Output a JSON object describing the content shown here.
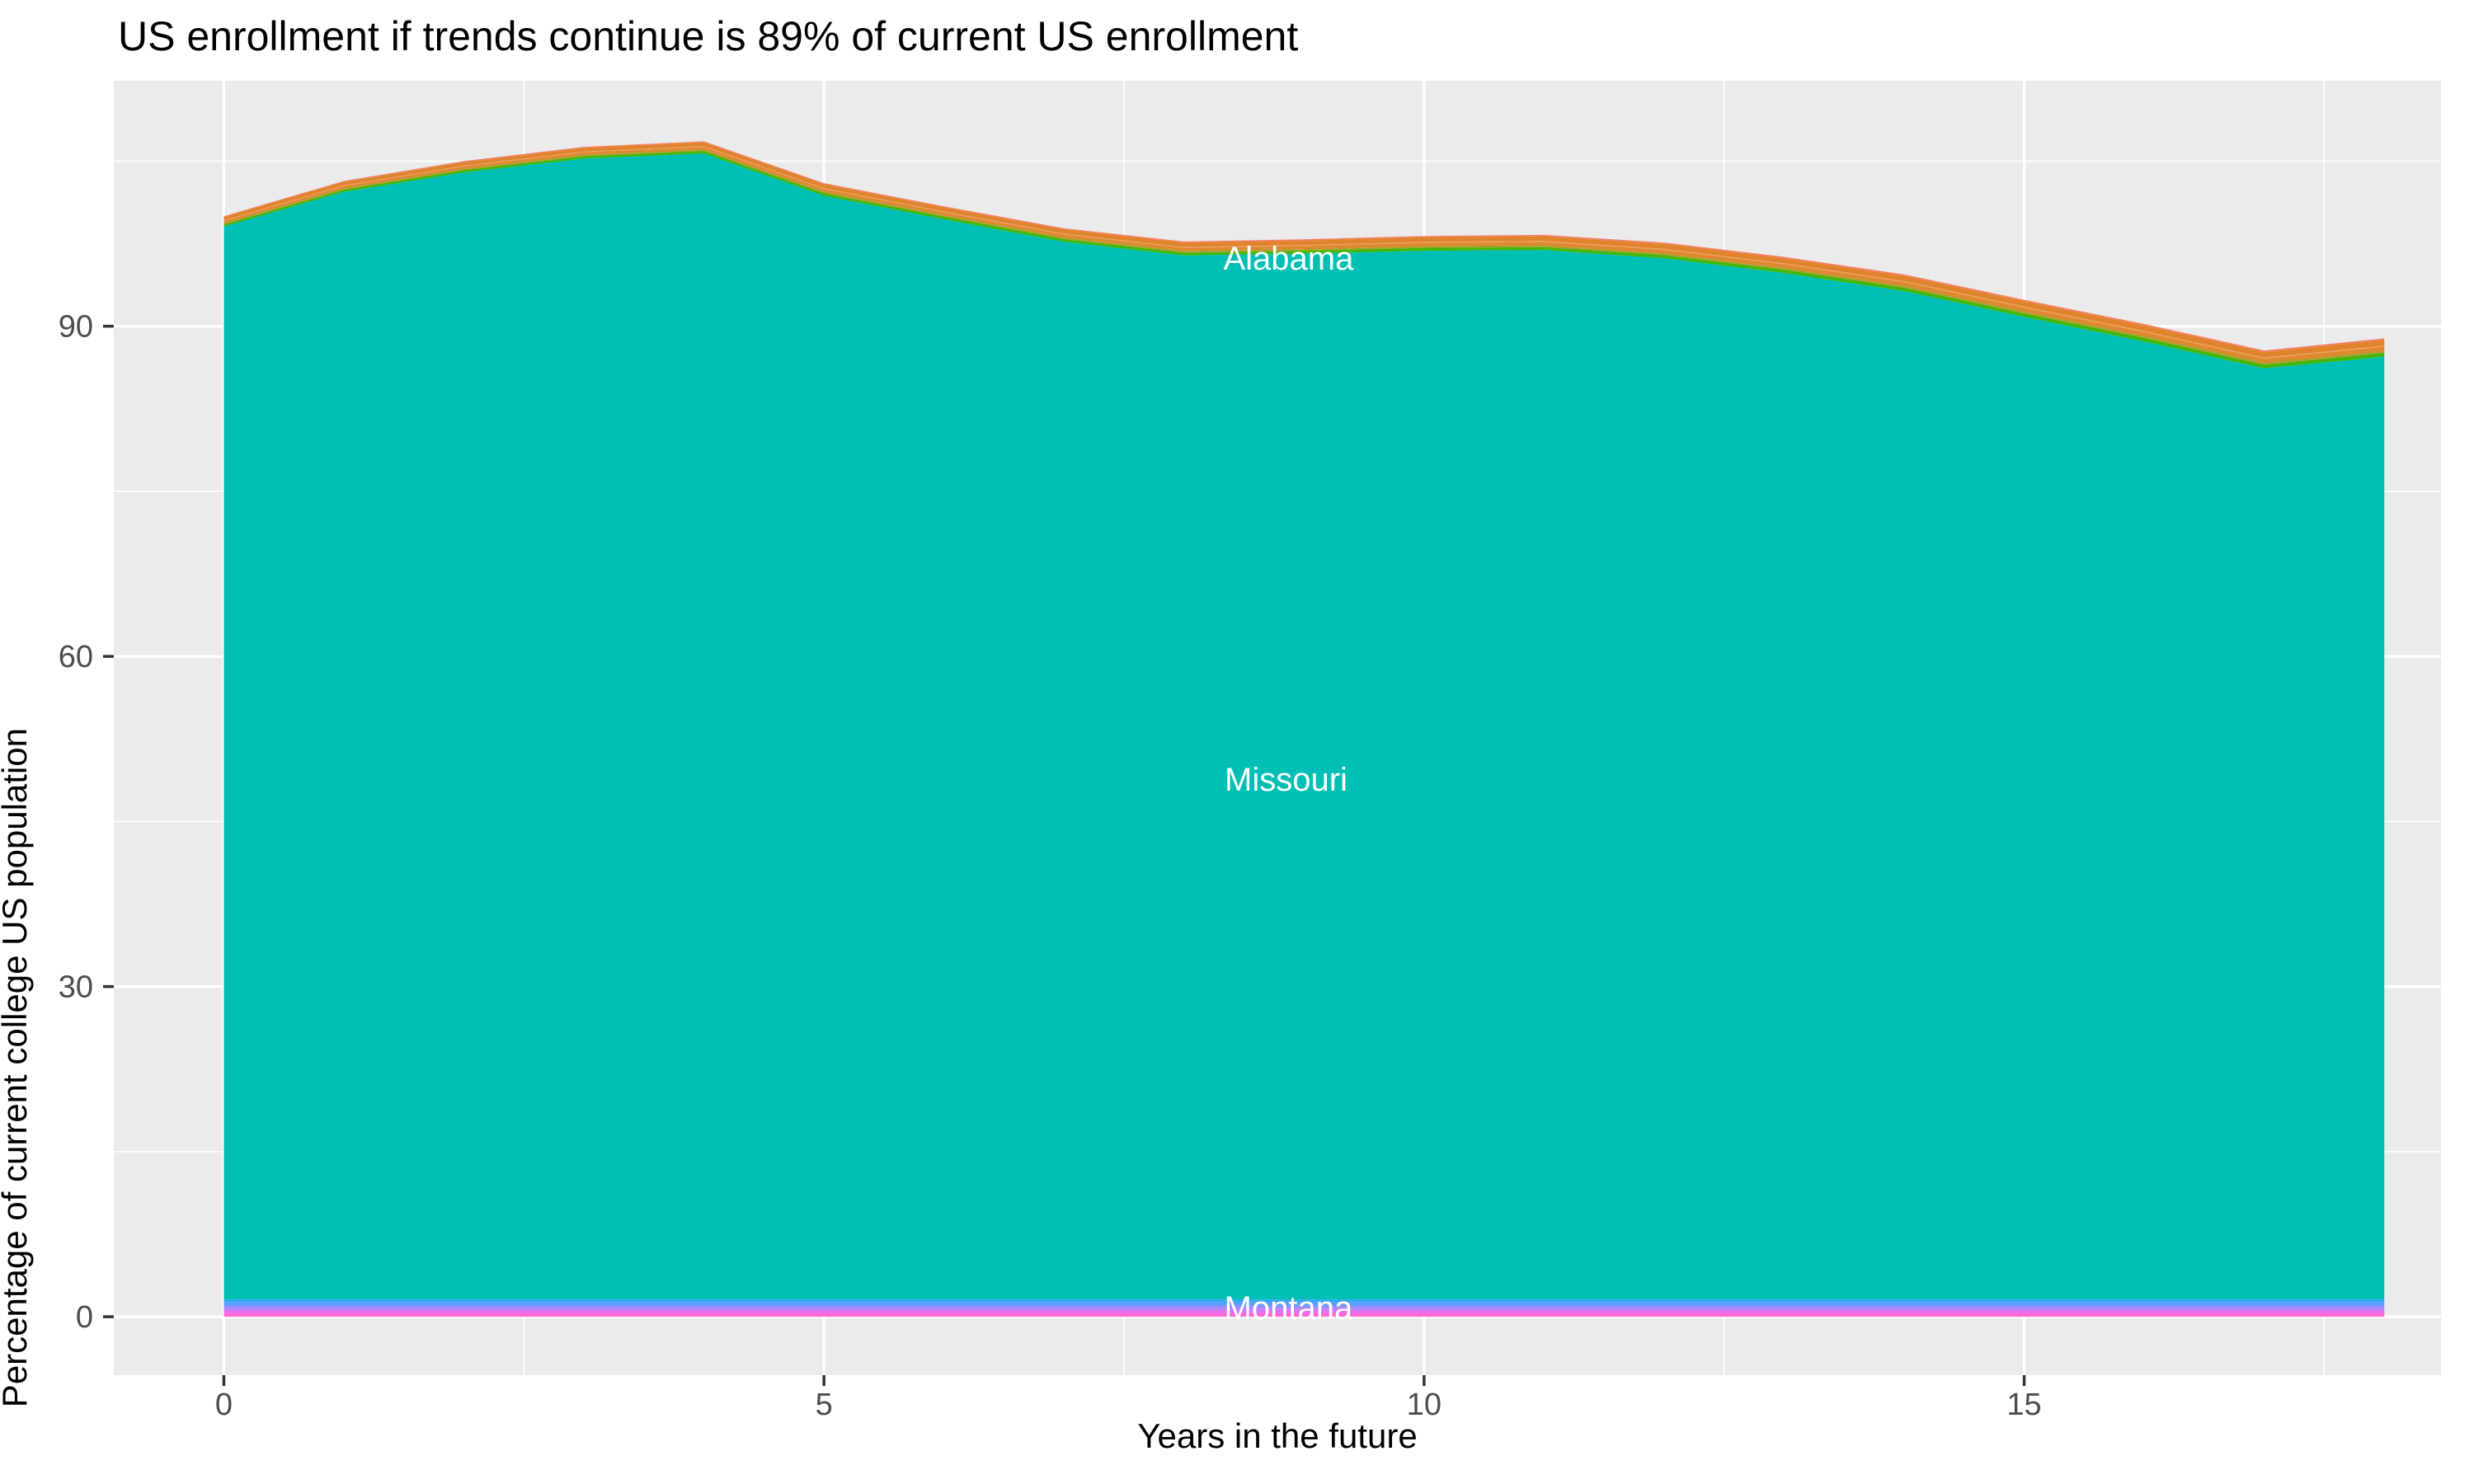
{
  "title": "US enrollment if trends continue is 89% of current US enrollment",
  "x_axis": {
    "label": "Years in the future",
    "ticks": [
      0,
      5,
      10,
      15
    ],
    "minor_ticks": [
      2.5,
      7.5,
      12.5,
      17.5
    ],
    "range": [
      -0.917,
      18.473
    ]
  },
  "y_axis": {
    "label": "Percentage of current college US population",
    "ticks": [
      0,
      30,
      60,
      90
    ],
    "minor_ticks": [
      15,
      45,
      75,
      105
    ],
    "range": [
      -5.31,
      112.3
    ]
  },
  "colors": {
    "panel_background": "#EBEBEB",
    "grid": "#FFFFFF",
    "tick_mark": "#333333",
    "tick_label": "#4D4D4D",
    "title_text": "#000000",
    "annotation_text": "#FFFFFF"
  },
  "chart_data": {
    "type": "area",
    "stacked": true,
    "title": "US enrollment if trends continue is 89% of current US enrollment",
    "xlabel": "Years in the future",
    "ylabel": "Percentage of current college US population",
    "grid": "on",
    "legend": "none (inline state labels)",
    "x": [
      0,
      1,
      2,
      3,
      4,
      5,
      6,
      7,
      8,
      9,
      10,
      11,
      12,
      13,
      14,
      15,
      16,
      17,
      18
    ],
    "total_percent": [
      100.0,
      103.2,
      105.0,
      106.3,
      106.8,
      103.0,
      100.9,
      98.9,
      97.7,
      97.9,
      98.2,
      98.3,
      97.6,
      96.3,
      94.7,
      92.4,
      90.2,
      87.8,
      88.9
    ],
    "top_band": {
      "description": "thin stacked bands of first alphabetical states (Alabama at top) down to green, above Missouri",
      "thickness_base": 0.95,
      "thickness_per_year": 0.04,
      "stripes": [
        {
          "name": "alabama-salmon",
          "from": 0.0,
          "to": 0.09,
          "color": "#F47E62"
        },
        {
          "name": "orange-1",
          "from": 0.09,
          "to": 0.4,
          "color": "#E0832D"
        },
        {
          "name": "orange-light",
          "from": 0.4,
          "to": 0.47,
          "color": "#EC9C5C"
        },
        {
          "name": "orange-2",
          "from": 0.47,
          "to": 0.62,
          "color": "#DF862D"
        },
        {
          "name": "amber",
          "from": 0.62,
          "to": 0.71,
          "color": "#D18A26"
        },
        {
          "name": "olive",
          "from": 0.71,
          "to": 0.8,
          "color": "#A7A02B"
        },
        {
          "name": "green",
          "from": 0.8,
          "to": 1.0,
          "color": "#43B707"
        }
      ]
    },
    "missouri_band": {
      "name": "Missouri",
      "color": "#00BFB5",
      "bottom": 1.57
    },
    "bottom_band": {
      "description": "thin stacked bands of last alphabetical states (Montana blue just below Missouri, pink Wyoming side at bottom)",
      "stripes": [
        {
          "name": "montana-blue",
          "from": 1.57,
          "to": 1.35,
          "color": "#2FA8F8"
        },
        {
          "name": "blue",
          "from": 1.35,
          "to": 1.05,
          "color": "#539FFF"
        },
        {
          "name": "periwinkle",
          "from": 1.05,
          "to": 0.82,
          "color": "#8A8DFF"
        },
        {
          "name": "violet",
          "from": 0.82,
          "to": 0.6,
          "color": "#B981FF"
        },
        {
          "name": "orchid",
          "from": 0.6,
          "to": 0.37,
          "color": "#E06EF0"
        },
        {
          "name": "magenta",
          "from": 0.37,
          "to": 0.15,
          "color": "#FB62DC"
        },
        {
          "name": "pink",
          "from": 0.15,
          "to": 0.0,
          "color": "#FF66CE"
        }
      ]
    },
    "annotations": [
      {
        "text": "Alabama",
        "x": 8.87,
        "y": 96.2,
        "color": "#FFFFFF"
      },
      {
        "text": "Missouri",
        "x": 8.85,
        "y": 48.85,
        "color": "#FFFFFF"
      },
      {
        "text": "Montana",
        "x": 8.87,
        "y": 0.85,
        "color": "#FFFFFF"
      }
    ]
  }
}
